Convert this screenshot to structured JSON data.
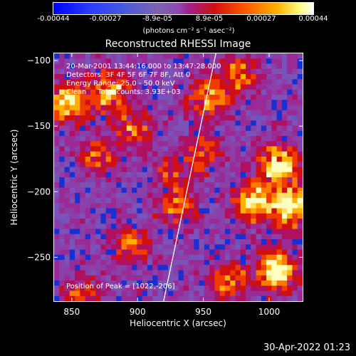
{
  "chart_data": {
    "type": "heatmap",
    "title": "Reconstructed RHESSI Image",
    "xlabel": "Heliocentric X (arcsec)",
    "ylabel": "Heliocentric Y (arcsec)",
    "xlim": [
      836,
      1026
    ],
    "ylim": [
      -284,
      -94
    ],
    "x_ticks": [
      "850",
      "900",
      "950",
      "1000"
    ],
    "y_ticks": [
      "-100",
      "-150",
      "-200",
      "-250"
    ],
    "colorbar": {
      "ticks": [
        "-0.00044",
        "-0.00027",
        "-8.9e-05",
        "8.9e-05",
        "0.00027",
        "0.00044"
      ],
      "units": "(photons cm⁻² s⁻¹ asec⁻²)"
    },
    "annotations": [
      "20-Mar-2001 13:44:16.000 to 13:47:28.000",
      "Detectors: 3F 4F 5F 6F 7F 8F, Att 0",
      "Energy Range: 25.0 - 50.0 keV",
      "Clean     Total counts: 3.93E+03"
    ],
    "peak_label": "Position of Peak = [1022,-206]",
    "limb_line": {
      "x": [
        919,
        959
      ],
      "y": [
        -284,
        -94
      ]
    }
  },
  "timestamp": "30-Apr-2022 01:23"
}
